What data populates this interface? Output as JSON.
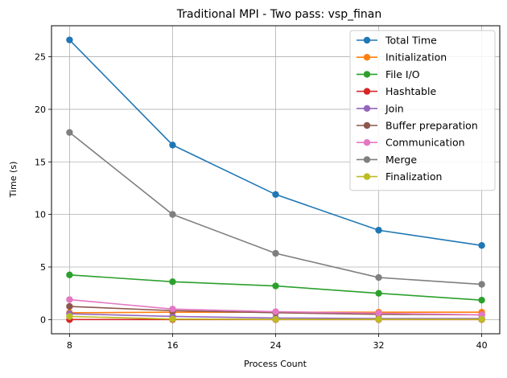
{
  "chart_data": {
    "type": "line",
    "title": "Traditional MPI - Two pass: vsp_finan",
    "xlabel": "Process Count",
    "ylabel": "Time (s)",
    "x": [
      8,
      16,
      24,
      32,
      40
    ],
    "xticks": [
      "8",
      "16",
      "24",
      "32",
      "40"
    ],
    "xlim": [
      6.6,
      41.4
    ],
    "ylim": [
      -1.35,
      27.95
    ],
    "yticks": [
      0,
      5,
      10,
      15,
      20,
      25
    ],
    "grid": true,
    "legend_position": "top-right",
    "series": [
      {
        "name": "Total Time",
        "color": "#1f77b4",
        "values": [
          26.6,
          16.6,
          11.9,
          8.5,
          7.05
        ]
      },
      {
        "name": "Initialization",
        "color": "#ff7f0e",
        "values": [
          0.65,
          0.7,
          0.7,
          0.7,
          0.7
        ]
      },
      {
        "name": "File I/O",
        "color": "#2ca02c",
        "values": [
          4.25,
          3.6,
          3.2,
          2.5,
          1.85
        ]
      },
      {
        "name": "Hashtable",
        "color": "#d62728",
        "values": [
          0.0,
          0.0,
          0.0,
          0.0,
          0.0
        ]
      },
      {
        "name": "Join",
        "color": "#9467bd",
        "values": [
          0.55,
          0.3,
          0.15,
          0.1,
          0.1
        ]
      },
      {
        "name": "Buffer preparation",
        "color": "#8c564b",
        "values": [
          1.25,
          0.85,
          0.65,
          0.5,
          0.45
        ]
      },
      {
        "name": "Communication",
        "color": "#e377c2",
        "values": [
          1.9,
          1.0,
          0.75,
          0.6,
          0.45
        ]
      },
      {
        "name": "Merge",
        "color": "#7f7f7f",
        "values": [
          17.8,
          10.0,
          6.3,
          4.0,
          3.35
        ]
      },
      {
        "name": "Finalization",
        "color": "#bcbd22",
        "values": [
          0.3,
          0.05,
          0.02,
          0.02,
          0.02
        ]
      }
    ]
  }
}
